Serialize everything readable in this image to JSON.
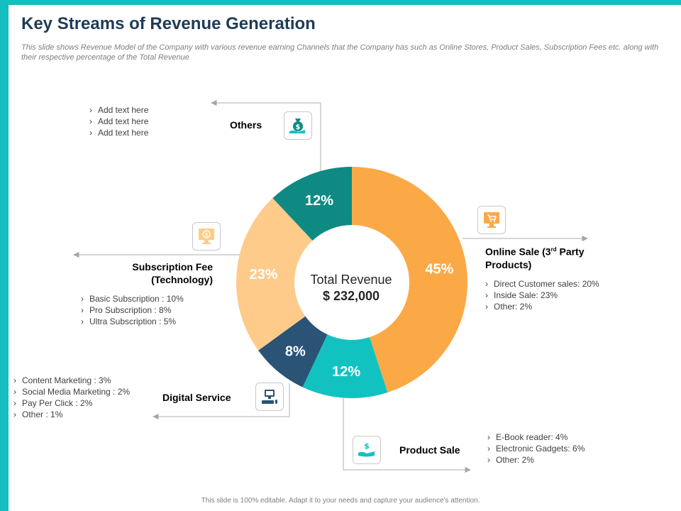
{
  "title": "Key Streams of Revenue Generation",
  "subtitle": "This slide shows Revenue Model of the Company with various revenue earning Channels that the Company has such as Online Stores, Product Sales, Subscription Fees etc. along with their respective percentage of the Total Revenue",
  "footer": "This slide is 100% editable. Adapt it to your needs and capture your audience's attention.",
  "center": {
    "title": "Total Revenue",
    "value": "$ 232,000"
  },
  "colors": {
    "accent": "#13bfbf",
    "title": "#1f3b57"
  },
  "streams": {
    "others": {
      "label": "Others",
      "icon": "money-bag-hand-icon",
      "items": [
        "Add text here",
        "Add text here",
        "Add text here"
      ]
    },
    "online": {
      "label_main": "Online Sale (3",
      "label_sup": "rd",
      "label_rest": " Party Products)",
      "icon": "shopping-cart-monitor-icon",
      "items": [
        "Direct Customer  sales: 20%",
        "Inside Sale: 23%",
        "Other: 2%"
      ]
    },
    "subscription": {
      "label_line1": "Subscription Fee",
      "label_line2": "(Technology)",
      "icon": "dollar-monitor-icon",
      "items": [
        "Basic Subscription : 10%",
        "Pro Subscription : 8%",
        "Ultra Subscription : 5%"
      ]
    },
    "digital": {
      "label": "Digital Service",
      "icon": "computer-icon",
      "items": [
        "Content Marketing : 3%",
        "Social Media Marketing : 2%",
        "Pay Per Click : 2%",
        "Other : 1%"
      ]
    },
    "product": {
      "label": "Product Sale",
      "icon": "dollar-hand-icon",
      "items": [
        "E-Book reader:  4%",
        "Electronic Gadgets: 6%",
        "Other: 2%"
      ]
    }
  },
  "chart_data": {
    "type": "pie",
    "title": "Total Revenue",
    "center_value": "$ 232,000",
    "categories": [
      "Online Sale (3rd Party Products)",
      "Product Sale",
      "Digital Service",
      "Subscription Fee (Technology)",
      "Others"
    ],
    "values": [
      45,
      12,
      8,
      23,
      12
    ],
    "value_labels": [
      "45%",
      "12%",
      "8%",
      "23%",
      "12%"
    ],
    "colors": [
      "#fba946",
      "#12c2c0",
      "#2a5375",
      "#fecb8a",
      "#0e8a83"
    ],
    "start_angle_deg": 0,
    "direction": "clockwise",
    "donut": true
  }
}
